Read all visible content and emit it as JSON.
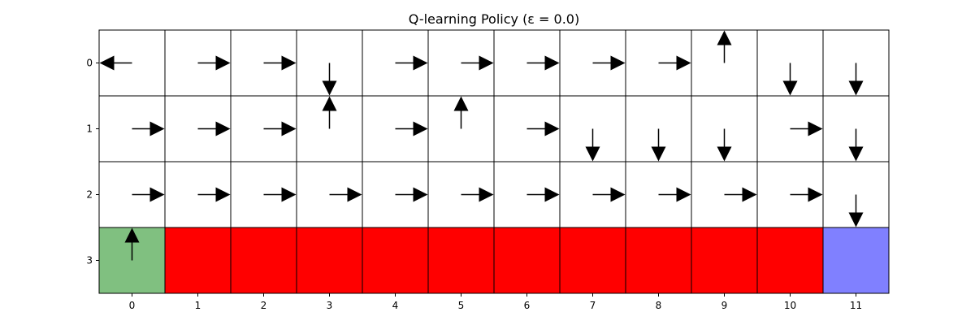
{
  "chart_data": {
    "type": "heatmap",
    "title": "Q-learning Policy (ε = 0.0)",
    "xlabel": "",
    "ylabel": "",
    "columns": [
      0,
      1,
      2,
      3,
      4,
      5,
      6,
      7,
      8,
      9,
      10,
      11
    ],
    "rows": [
      0,
      1,
      2,
      3
    ],
    "cell_types": [
      [
        "empty",
        "empty",
        "empty",
        "empty",
        "empty",
        "empty",
        "empty",
        "empty",
        "empty",
        "empty",
        "empty",
        "empty"
      ],
      [
        "empty",
        "empty",
        "empty",
        "empty",
        "empty",
        "empty",
        "empty",
        "empty",
        "empty",
        "empty",
        "empty",
        "empty"
      ],
      [
        "empty",
        "empty",
        "empty",
        "empty",
        "empty",
        "empty",
        "empty",
        "empty",
        "empty",
        "empty",
        "empty",
        "empty"
      ],
      [
        "start",
        "cliff",
        "cliff",
        "cliff",
        "cliff",
        "cliff",
        "cliff",
        "cliff",
        "cliff",
        "cliff",
        "cliff",
        "goal"
      ]
    ],
    "policy": [
      [
        "left",
        "right",
        "right",
        "down",
        "right",
        "right",
        "right",
        "right",
        "right",
        "up",
        "down",
        "down"
      ],
      [
        "right",
        "right",
        "right",
        "up",
        "right",
        "up",
        "right",
        "down",
        "down",
        "down",
        "right",
        "down"
      ],
      [
        "right",
        "right",
        "right",
        "right",
        "right",
        "right",
        "right",
        "right",
        "right",
        "right",
        "right",
        "down"
      ],
      [
        "up",
        null,
        null,
        null,
        null,
        null,
        null,
        null,
        null,
        null,
        null,
        null
      ]
    ],
    "colors": {
      "empty": "#ffffff",
      "start": "#80c080",
      "cliff": "#ff0000",
      "goal": "#8080ff",
      "arrow": "#000000",
      "grid": "#000000"
    },
    "grid": true
  }
}
